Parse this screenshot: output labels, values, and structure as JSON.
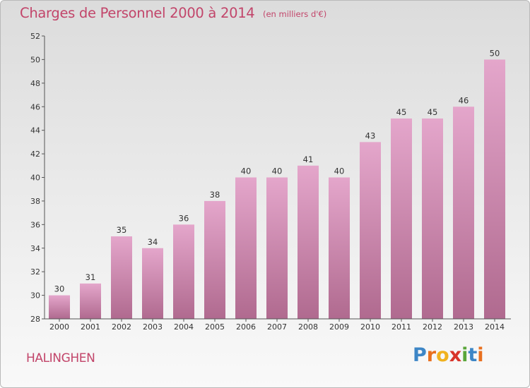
{
  "header": {
    "title": "Charges de Personnel 2000 à 2014",
    "subtitle": "(en milliers d'€)"
  },
  "footer": {
    "place": "HALINGHEN",
    "logo_letters": [
      "P",
      "r",
      "o",
      "x",
      "i",
      "t",
      "i"
    ],
    "logo_colors": [
      "#3d86c6",
      "#e8701f",
      "#f0b21e",
      "#d8342a",
      "#5aa63a",
      "#3d86c6",
      "#e8701f"
    ]
  },
  "chart_data": {
    "type": "bar",
    "title": "Charges de Personnel 2000 à 2014",
    "subtitle": "(en milliers d'€)",
    "categories": [
      "2000",
      "2001",
      "2002",
      "2003",
      "2004",
      "2005",
      "2006",
      "2007",
      "2008",
      "2009",
      "2010",
      "2011",
      "2012",
      "2013",
      "2014"
    ],
    "values": [
      30,
      31,
      35,
      34,
      36,
      38,
      40,
      40,
      41,
      40,
      43,
      45,
      45,
      46,
      50
    ],
    "ylim": [
      28,
      52
    ],
    "yticks": [
      28,
      30,
      32,
      34,
      36,
      38,
      40,
      42,
      44,
      46,
      48,
      50,
      52
    ],
    "grid": false,
    "bar_color_top": "#e4a6cb",
    "bar_color_bottom": "#b06a8f"
  }
}
